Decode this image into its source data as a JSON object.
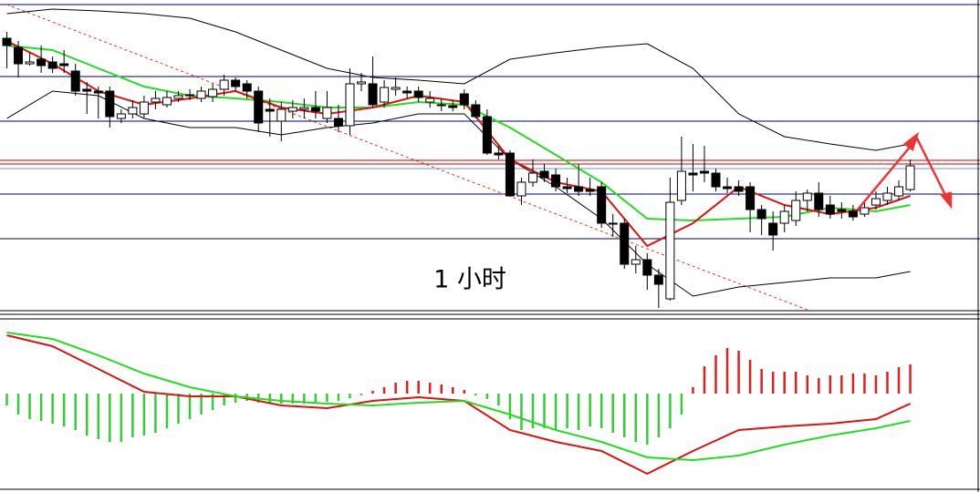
{
  "chart_data": [
    {
      "type": "candlestick",
      "annotation": "1 小时",
      "xlim": [
        -0.6,
        85.1
      ],
      "ylim": [
        55,
        400
      ],
      "up_color": "#ffffff",
      "down_color": "#000000",
      "open": [
        358,
        348,
        330,
        335,
        332,
        330,
        322,
        302,
        300,
        300,
        270,
        275,
        275,
        288,
        285,
        292,
        295,
        292,
        294,
        302,
        312,
        308,
        300,
        280,
        267,
        278,
        280,
        282,
        270,
        270,
        262,
        308,
        308,
        288,
        302,
        300,
        300,
        288,
        285,
        284,
        297,
        285,
        272,
        232,
        232,
        185,
        200,
        212,
        208,
        195,
        195,
        192,
        195,
        155,
        155,
        110,
        115,
        98,
        72,
        180,
        210,
        212,
        210,
        195,
        195,
        195,
        170,
        155,
        155,
        158,
        180,
        188,
        175,
        170,
        168,
        165,
        175,
        180,
        185,
        192
      ],
      "close": [
        350,
        330,
        332,
        328,
        325,
        328,
        300,
        300,
        298,
        272,
        275,
        282,
        288,
        292,
        293,
        295,
        296,
        300,
        302,
        312,
        305,
        300,
        265,
        278,
        280,
        282,
        282,
        278,
        282,
        262,
        308,
        310,
        285,
        304,
        304,
        298,
        293,
        292,
        284,
        282,
        285,
        272,
        232,
        230,
        185,
        200,
        210,
        205,
        195,
        193,
        190,
        190,
        155,
        154,
        110,
        115,
        98,
        88,
        178,
        212,
        208,
        210,
        195,
        193,
        190,
        170,
        160,
        142,
        168,
        180,
        188,
        170,
        165,
        168,
        162,
        172,
        182,
        188,
        195,
        218
      ],
      "high": [
        365,
        355,
        342,
        350,
        338,
        345,
        330,
        310,
        305,
        305,
        280,
        290,
        295,
        300,
        300,
        300,
        302,
        305,
        308,
        318,
        315,
        312,
        305,
        292,
        288,
        290,
        292,
        300,
        300,
        285,
        325,
        320,
        338,
        312,
        315,
        305,
        305,
        300,
        292,
        290,
        302,
        290,
        280,
        240,
        235,
        205,
        225,
        220,
        215,
        205,
        220,
        205,
        200,
        165,
        160,
        130,
        122,
        105,
        205,
        250,
        242,
        240,
        215,
        205,
        202,
        200,
        175,
        168,
        175,
        190,
        192,
        200,
        185,
        178,
        175,
        180,
        190,
        195,
        202,
        225
      ],
      "low": [
        325,
        315,
        328,
        320,
        320,
        320,
        295,
        275,
        270,
        260,
        265,
        270,
        270,
        280,
        282,
        288,
        290,
        288,
        288,
        295,
        300,
        292,
        255,
        250,
        245,
        270,
        270,
        270,
        265,
        255,
        252,
        300,
        282,
        282,
        295,
        292,
        288,
        282,
        278,
        278,
        280,
        270,
        230,
        225,
        185,
        175,
        195,
        200,
        190,
        188,
        185,
        185,
        150,
        140,
        105,
        100,
        82,
        62,
        70,
        175,
        190,
        200,
        190,
        188,
        185,
        145,
        142,
        125,
        145,
        152,
        168,
        162,
        160,
        160,
        158,
        162,
        170,
        175,
        180,
        190
      ],
      "line_x": [
        0,
        4,
        8,
        12,
        16,
        20,
        24,
        28,
        32,
        36,
        40,
        44,
        48,
        52,
        56,
        60,
        64,
        68,
        72,
        76,
        79
      ],
      "series": [
        {
          "color": "#000000",
          "values": [
            385,
            390,
            388,
            385,
            380,
            365,
            345,
            325,
            315,
            312,
            308,
            335,
            342,
            348,
            352,
            325,
            275,
            250,
            242,
            235,
            242
          ]
        },
        {
          "color": "#000000",
          "values": [
            270,
            300,
            295,
            270,
            260,
            260,
            252,
            260,
            265,
            275,
            275,
            225,
            195,
            160,
            110,
            75,
            85,
            90,
            95,
            95,
            102
          ]
        },
        {
          "color": "#22dd22",
          "values": [
            350,
            345,
            325,
            305,
            295,
            292,
            288,
            282,
            282,
            288,
            285,
            260,
            230,
            200,
            160,
            158,
            160,
            162,
            172,
            168,
            175
          ]
        },
        {
          "color": "#dd1111",
          "values": [
            355,
            330,
            300,
            285,
            292,
            300,
            282,
            275,
            282,
            295,
            288,
            225,
            200,
            190,
            130,
            155,
            195,
            175,
            165,
            172,
            185
          ]
        }
      ],
      "hlines": [
        {
          "value": 395,
          "color": "#000066"
        },
        {
          "value": 316,
          "color": "#000066"
        },
        {
          "value": 267,
          "color": "#000066"
        },
        {
          "value": 224,
          "color": "#cc0000"
        },
        {
          "value": 220,
          "color": "#cc0000"
        },
        {
          "value": 215,
          "color": "#6699cc"
        },
        {
          "value": 187,
          "color": "#000066"
        },
        {
          "value": 138,
          "color": "#000066"
        }
      ],
      "trendline": {
        "x": [
          0,
          70
        ],
        "values": [
          395,
          60
        ],
        "color": "#e03030"
      }
    },
    {
      "type": "macd",
      "xlim": [
        -0.6,
        85.1
      ],
      "ylim": [
        -103,
        77
      ],
      "up_color": "#e02020",
      "down_color": "#33cc33",
      "values": [
        -13,
        -23,
        -28,
        -30,
        -33,
        -36,
        -40,
        -46,
        -50,
        -53,
        -53,
        -48,
        -46,
        -43,
        -38,
        -33,
        -28,
        -23,
        -18,
        -13,
        -10,
        -8,
        -10,
        -11,
        -11,
        -11,
        -11,
        -11,
        -9,
        -8,
        -5,
        -2,
        3,
        7,
        12,
        14,
        14,
        12,
        10,
        7,
        4,
        -2,
        -6,
        -13,
        -28,
        -40,
        -38,
        -38,
        -40,
        -38,
        -40,
        -36,
        -38,
        -43,
        -48,
        -53,
        -56,
        -48,
        -38,
        -23,
        7,
        30,
        42,
        50,
        47,
        37,
        27,
        24,
        24,
        24,
        20,
        17,
        20,
        20,
        22,
        22,
        20,
        24,
        29,
        32
      ],
      "line_x": [
        0,
        4,
        8,
        12,
        16,
        20,
        24,
        28,
        32,
        36,
        40,
        44,
        48,
        52,
        56,
        60,
        64,
        68,
        72,
        76,
        79
      ],
      "series": [
        {
          "color": "#dd1111",
          "values": [
            64,
            52,
            27,
            2,
            -3,
            -3,
            -13,
            -16,
            -8,
            -4,
            -8,
            -40,
            -53,
            -63,
            -88,
            -63,
            -40,
            -36,
            -33,
            -28,
            -11
          ]
        },
        {
          "color": "#22dd22",
          "values": [
            67,
            60,
            42,
            22,
            7,
            -3,
            -8,
            -11,
            -13,
            -10,
            -8,
            -23,
            -40,
            -53,
            -70,
            -73,
            -68,
            -56,
            -46,
            -38,
            -30
          ]
        }
      ]
    }
  ]
}
